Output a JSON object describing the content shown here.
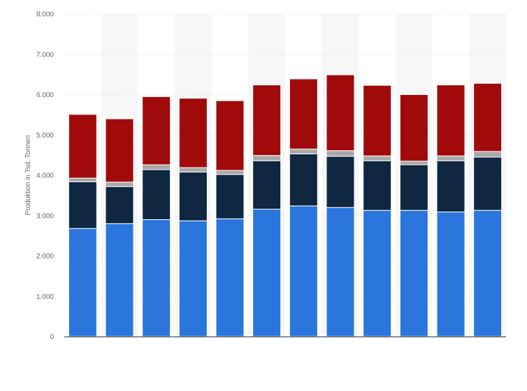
{
  "chart_data": {
    "type": "bar",
    "stacked": true,
    "title": "",
    "xlabel": "",
    "ylabel": "Produktion in Tsd. Tonnen",
    "ylim": [
      0,
      8000
    ],
    "yticks": [
      0,
      1000,
      2000,
      3000,
      4000,
      5000,
      6000,
      7000,
      8000
    ],
    "ytick_labels": [
      "0",
      "1.000",
      "2.000",
      "3.000",
      "4.000",
      "5.000",
      "6.000",
      "7.000",
      "8.000"
    ],
    "grid": true,
    "categories": [
      "",
      "",
      "",
      "",
      "",
      "",
      "",
      "",
      "",
      "",
      "",
      ""
    ],
    "series": [
      {
        "color": "#2a76dd",
        "values": [
          2680,
          2800,
          2900,
          2870,
          2920,
          3160,
          3240,
          3200,
          3130,
          3130,
          3090,
          3130
        ]
      },
      {
        "color": "#0f2740",
        "values": [
          1160,
          920,
          1240,
          1210,
          1100,
          1200,
          1290,
          1270,
          1230,
          1130,
          1270,
          1320
        ]
      },
      {
        "color": "#a8a8a8",
        "values": [
          90,
          110,
          120,
          110,
          100,
          130,
          120,
          140,
          120,
          90,
          120,
          140
        ]
      },
      {
        "color": "#a10a0a",
        "values": [
          1580,
          1570,
          1690,
          1720,
          1730,
          1750,
          1740,
          1880,
          1750,
          1650,
          1760,
          1690
        ]
      }
    ]
  }
}
